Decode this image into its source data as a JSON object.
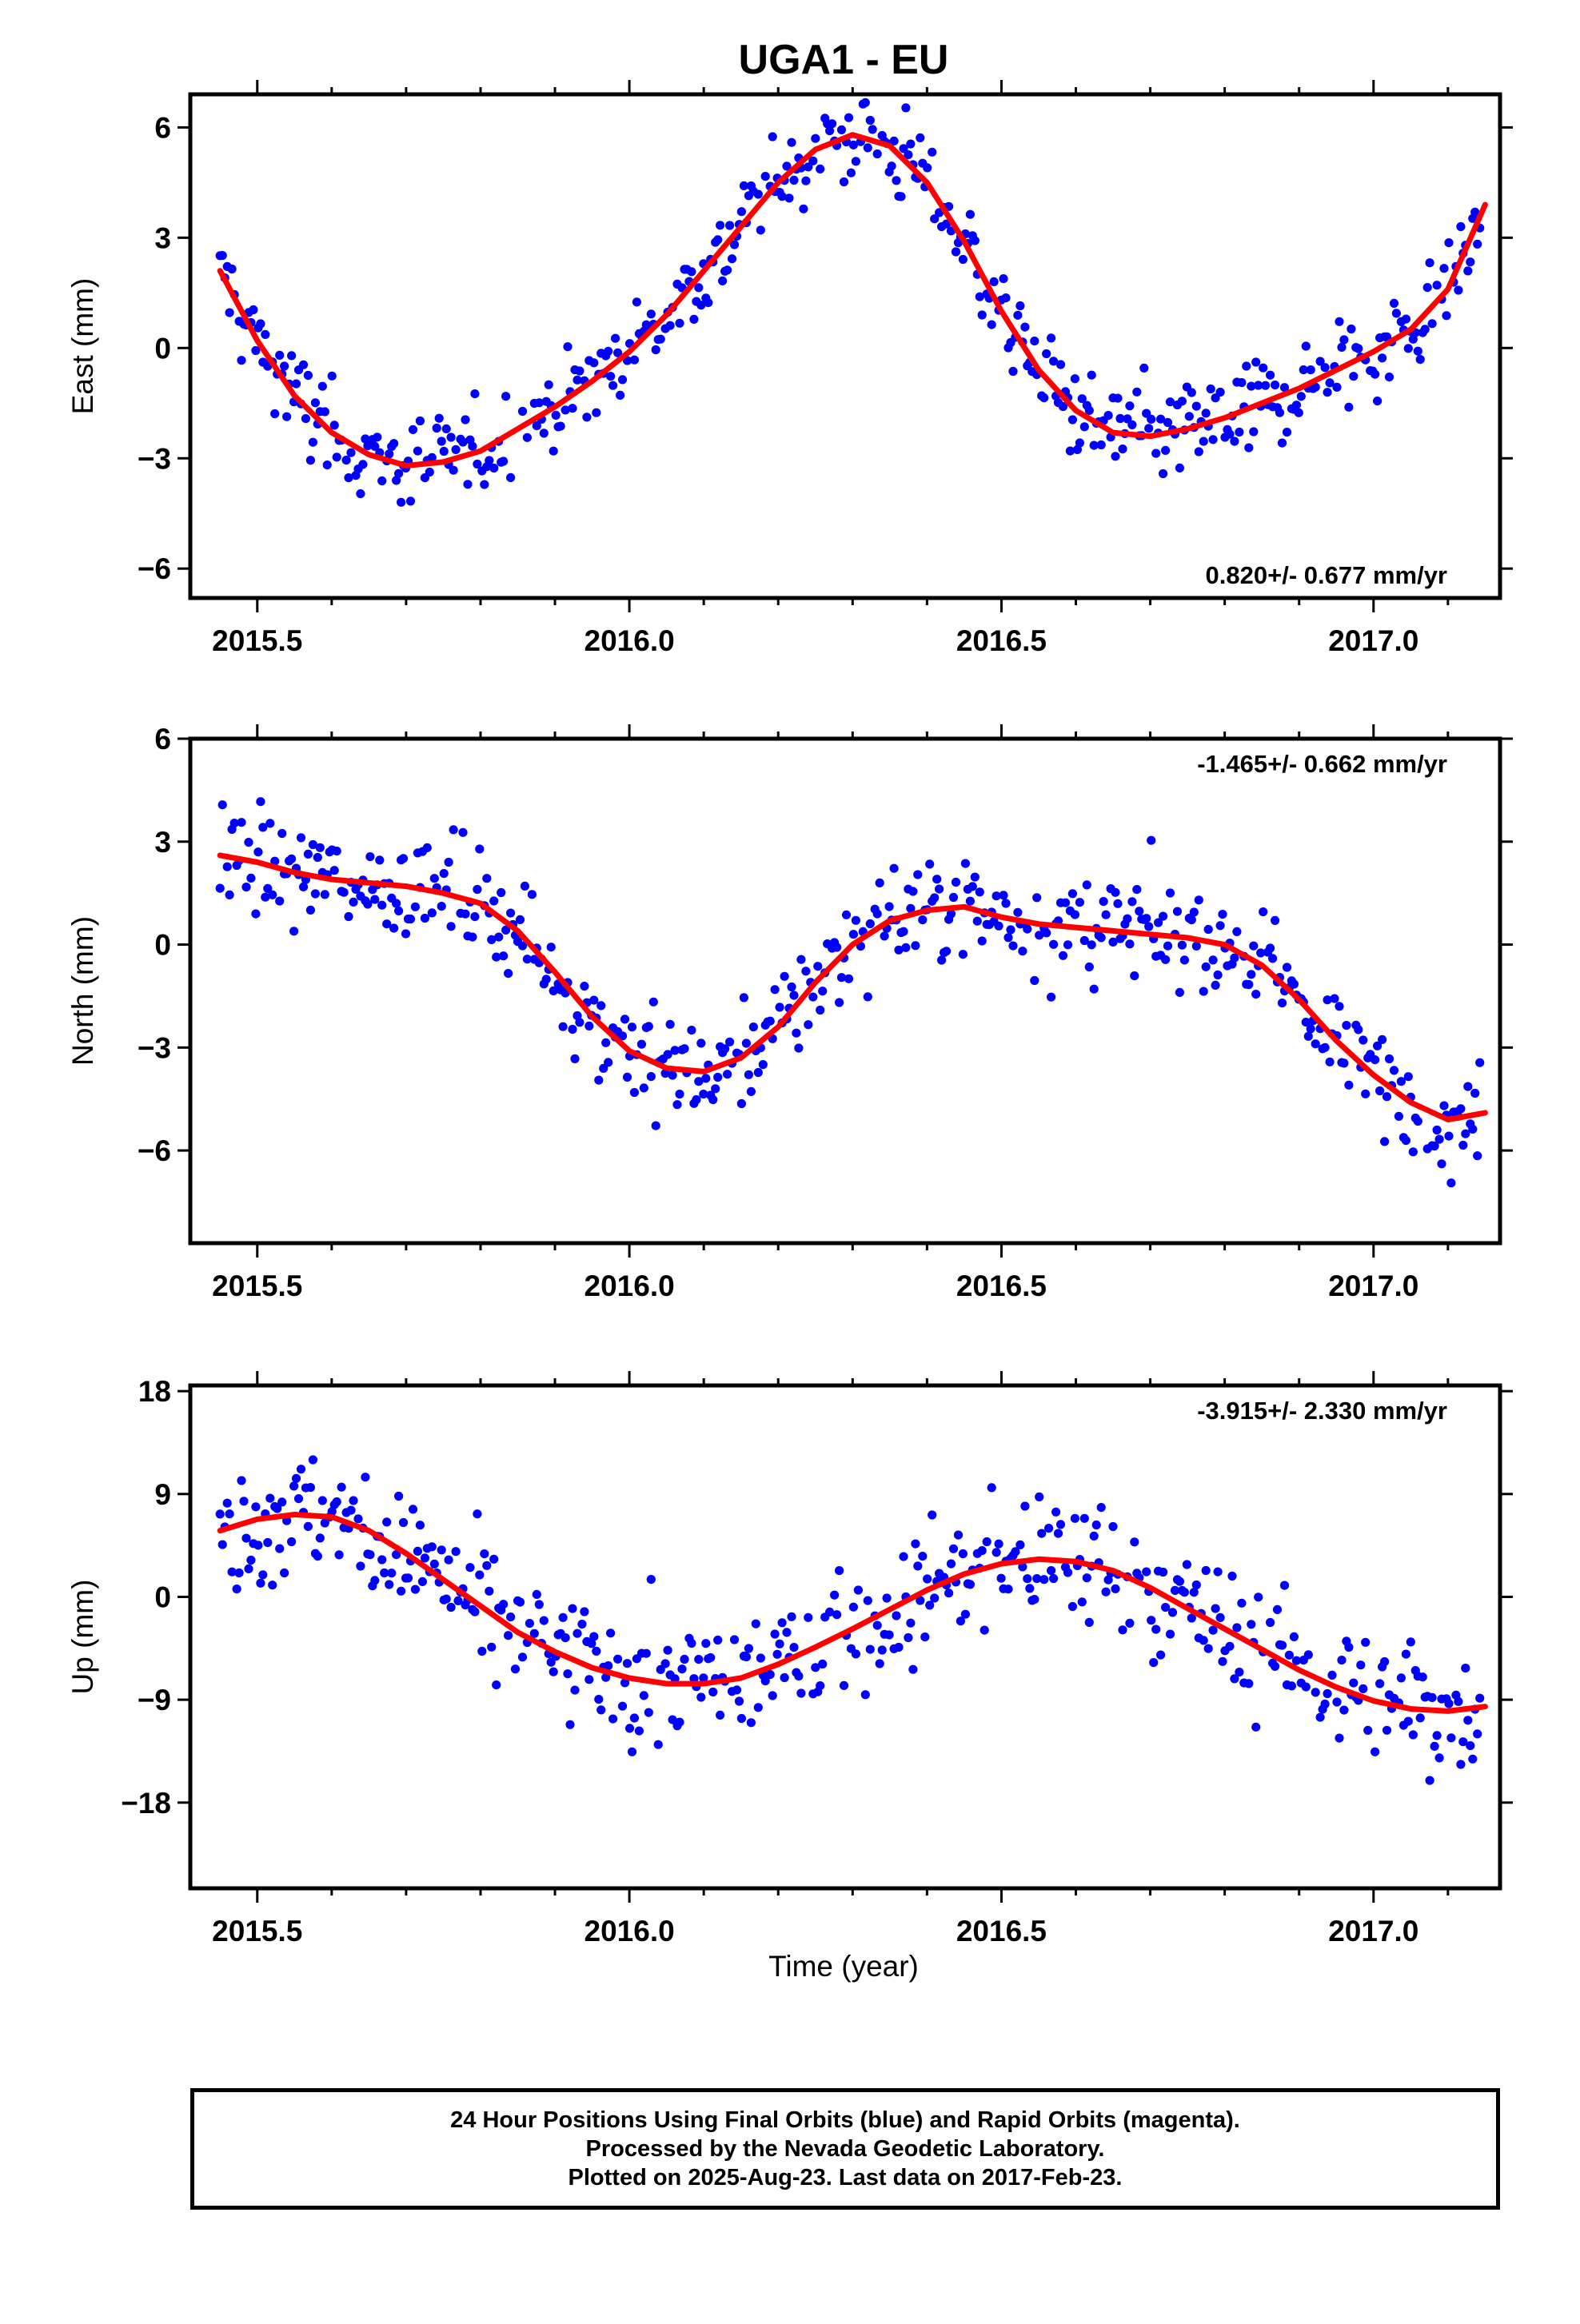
{
  "title": "UGA1 - EU",
  "xlabel": "Time (year)",
  "x_ticks": [
    "2015.5",
    "2016.0",
    "2016.5",
    "2017.0"
  ],
  "notes": {
    "line1": "24 Hour Positions Using Final Orbits (blue) and Rapid Orbits (magenta).",
    "line2": "Processed by the Nevada Geodetic Laboratory.",
    "line3": "Plotted on 2025-Aug-23. Last data on 2017-Feb-23."
  },
  "colors": {
    "final_orbits": "#0000ff",
    "model_fit": "#ff0000",
    "axes": "#000000"
  },
  "chart_data": [
    {
      "type": "scatter",
      "ylabel": "East (mm)",
      "rate_label": "0.820+/- 0.677 mm/yr",
      "xlim": [
        2015.41,
        2017.17
      ],
      "ylim": [
        -6.8,
        6.9
      ],
      "yticks": [
        6,
        3,
        0,
        -3,
        -6
      ],
      "ytick_labels": [
        "6",
        "3",
        "0",
        "−3",
        "−6"
      ],
      "legend_position": "bottom-right",
      "fit": {
        "x": [
          2015.45,
          2015.5,
          2015.55,
          2015.6,
          2015.65,
          2015.7,
          2015.75,
          2015.8,
          2015.85,
          2015.9,
          2015.95,
          2016.0,
          2016.05,
          2016.1,
          2016.15,
          2016.2,
          2016.25,
          2016.3,
          2016.35,
          2016.4,
          2016.45,
          2016.5,
          2016.55,
          2016.6,
          2016.65,
          2016.7,
          2016.75,
          2016.8,
          2016.85,
          2016.9,
          2016.95,
          2017.0,
          2017.05,
          2017.1,
          2017.15
        ],
        "y": [
          2.1,
          0.2,
          -1.3,
          -2.3,
          -2.9,
          -3.2,
          -3.1,
          -2.8,
          -2.2,
          -1.6,
          -0.9,
          -0.1,
          0.9,
          2.1,
          3.3,
          4.5,
          5.4,
          5.8,
          5.5,
          4.5,
          2.9,
          1.0,
          -0.6,
          -1.7,
          -2.3,
          -2.4,
          -2.2,
          -1.9,
          -1.5,
          -1.1,
          -0.6,
          -0.1,
          0.5,
          1.6,
          3.9
        ]
      }
    },
    {
      "type": "scatter",
      "ylabel": "North (mm)",
      "rate_label": "-1.465+/- 0.662 mm/yr",
      "xlim": [
        2015.41,
        2017.17
      ],
      "ylim": [
        -8.7,
        6.0
      ],
      "yticks": [
        6,
        3,
        0,
        -3,
        -6
      ],
      "ytick_labels": [
        "6",
        "3",
        "0",
        "−3",
        "−6"
      ],
      "legend_position": "top-right",
      "fit": {
        "x": [
          2015.45,
          2015.5,
          2015.55,
          2015.6,
          2015.65,
          2015.7,
          2015.75,
          2015.8,
          2015.85,
          2015.9,
          2015.95,
          2016.0,
          2016.05,
          2016.1,
          2016.15,
          2016.2,
          2016.25,
          2016.3,
          2016.35,
          2016.4,
          2016.45,
          2016.5,
          2016.55,
          2016.6,
          2016.65,
          2016.7,
          2016.75,
          2016.8,
          2016.85,
          2016.9,
          2016.95,
          2017.0,
          2017.05,
          2017.1,
          2017.15
        ],
        "y": [
          2.6,
          2.4,
          2.1,
          1.9,
          1.8,
          1.7,
          1.5,
          1.2,
          0.4,
          -0.8,
          -2.1,
          -3.1,
          -3.6,
          -3.7,
          -3.3,
          -2.4,
          -1.1,
          0.0,
          0.7,
          1.0,
          1.1,
          0.8,
          0.6,
          0.5,
          0.4,
          0.3,
          0.2,
          0.0,
          -0.6,
          -1.6,
          -2.8,
          -3.8,
          -4.6,
          -5.1,
          -4.9
        ]
      }
    },
    {
      "type": "scatter",
      "ylabel": "Up (mm)",
      "rate_label": "-3.915+/- 2.330 mm/yr",
      "xlim": [
        2015.41,
        2017.17
      ],
      "ylim": [
        -25.5,
        18.5
      ],
      "yticks": [
        18,
        9,
        0,
        -9,
        -18
      ],
      "ytick_labels": [
        "18",
        "9",
        "0",
        "−9",
        "−18"
      ],
      "legend_position": "top-right",
      "fit": {
        "x": [
          2015.45,
          2015.5,
          2015.55,
          2015.6,
          2015.65,
          2015.7,
          2015.75,
          2015.8,
          2015.85,
          2015.9,
          2015.95,
          2016.0,
          2016.05,
          2016.1,
          2016.15,
          2016.2,
          2016.25,
          2016.3,
          2016.35,
          2016.4,
          2016.45,
          2016.5,
          2016.55,
          2016.6,
          2016.65,
          2016.7,
          2016.75,
          2016.8,
          2016.85,
          2016.9,
          2016.95,
          2017.0,
          2017.05,
          2017.1,
          2017.15
        ],
        "y": [
          5.8,
          6.8,
          7.2,
          7.0,
          5.8,
          3.8,
          1.5,
          -0.8,
          -3.1,
          -4.8,
          -6.2,
          -7.1,
          -7.6,
          -7.6,
          -7.1,
          -5.9,
          -4.4,
          -2.8,
          -1.1,
          0.6,
          2.0,
          2.9,
          3.3,
          3.1,
          2.3,
          0.8,
          -1.0,
          -2.8,
          -4.6,
          -6.4,
          -7.9,
          -9.1,
          -9.8,
          -10.0,
          -9.6
        ]
      }
    }
  ]
}
